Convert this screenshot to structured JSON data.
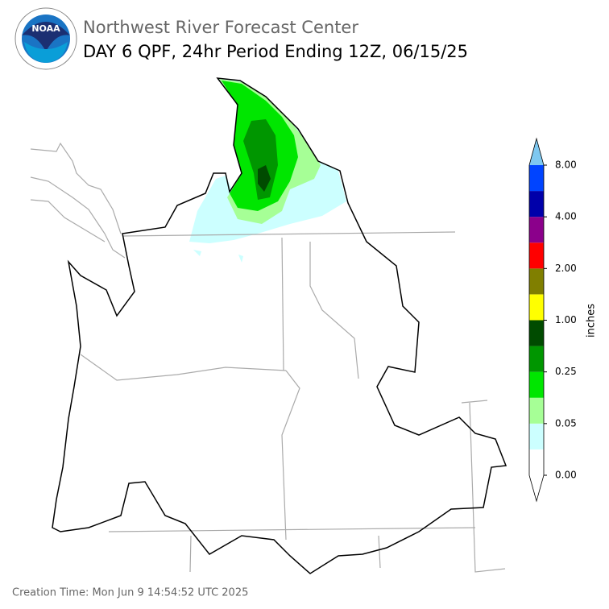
{
  "header": {
    "logo": "NOAA",
    "agency": "Northwest River Forecast Center",
    "title": "DAY 6 QPF, 24hr Period Ending 12Z, 06/15/25"
  },
  "legend": {
    "label": "inches",
    "ticks": [
      "0.00",
      "0.05",
      "0.25",
      "1.00",
      "2.00",
      "4.00",
      "8.00"
    ],
    "colors": [
      "#ffffff",
      "#ccffff",
      "#a6ff96",
      "#00e600",
      "#009600",
      "#004b00",
      "#ffff00",
      "#807f00",
      "#ff0000",
      "#8b008b",
      "#0000aa",
      "#0044ff"
    ],
    "under_color": "#ffffff",
    "over_color": "#7ec8f0"
  },
  "footer": {
    "creation_time": "Creation Time: Mon Jun 9 14:54:52 UTC 2025"
  }
}
